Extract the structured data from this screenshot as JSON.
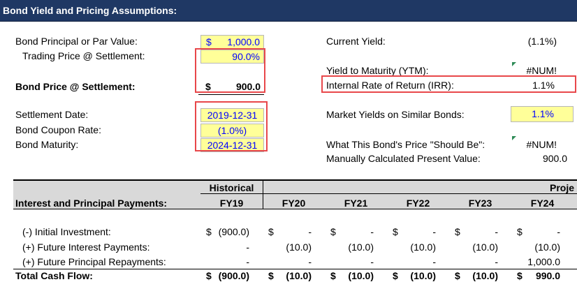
{
  "header": {
    "title": "Bond Yield and Pricing Assumptions:"
  },
  "assumptions": {
    "par_label": "Bond Principal or Par Value:",
    "par_currency": "$",
    "par_value": "1,000.0",
    "trading_price_label": "Trading Price @ Settlement:",
    "trading_price_value": "90.0%",
    "bond_price_label": "Bond Price @ Settlement:",
    "bond_price_currency": "$",
    "bond_price_value": "900.0",
    "settlement_date_label": "Settlement Date:",
    "settlement_date_value": "2019-12-31",
    "coupon_rate_label": "Bond Coupon Rate:",
    "coupon_rate_value": "(1.0%)",
    "maturity_label": "Bond Maturity:",
    "maturity_value": "2024-12-31"
  },
  "yields": {
    "current_yield_label": "Current Yield:",
    "current_yield_value": "(1.1%)",
    "ytm_label": "Yield to Maturity (YTM):",
    "ytm_value": "#NUM!",
    "irr_label": "Internal Rate of Return (IRR):",
    "irr_value": "1.1%",
    "market_yield_label": "Market Yields on Similar Bonds:",
    "market_yield_value": "1.1%",
    "should_be_label": "What This Bond's Price \"Should Be\":",
    "should_be_value": "#NUM!",
    "pv_label": "Manually Calculated Present Value:",
    "pv_value": "900.0"
  },
  "table": {
    "historical_label": "Historical",
    "projected_label": "Proje",
    "section_label": "Interest and Principal Payments:",
    "years": [
      "FY19",
      "FY20",
      "FY21",
      "FY22",
      "FY23",
      "FY24"
    ],
    "rows": [
      {
        "label": "(-) Initial Investment:",
        "cells": [
          {
            "cur": "$",
            "val": "(900.0)"
          },
          {
            "cur": "$",
            "val": "-"
          },
          {
            "cur": "$",
            "val": "-"
          },
          {
            "cur": "$",
            "val": "-"
          },
          {
            "cur": "$",
            "val": "-"
          },
          {
            "cur": "$",
            "val": "-"
          }
        ]
      },
      {
        "label": "(+) Future Interest Payments:",
        "cells": [
          {
            "cur": "",
            "val": "-"
          },
          {
            "cur": "",
            "val": "(10.0)"
          },
          {
            "cur": "",
            "val": "(10.0)"
          },
          {
            "cur": "",
            "val": "(10.0)"
          },
          {
            "cur": "",
            "val": "(10.0)"
          },
          {
            "cur": "",
            "val": "(10.0)"
          }
        ]
      },
      {
        "label": "(+) Future Principal Repayments:",
        "cells": [
          {
            "cur": "",
            "val": "-"
          },
          {
            "cur": "",
            "val": "-"
          },
          {
            "cur": "",
            "val": "-"
          },
          {
            "cur": "",
            "val": "-"
          },
          {
            "cur": "",
            "val": "-"
          },
          {
            "cur": "",
            "val": "1,000.0"
          }
        ]
      }
    ],
    "total": {
      "label": "Total Cash Flow:",
      "cells": [
        {
          "cur": "$",
          "val": "(900.0)"
        },
        {
          "cur": "$",
          "val": "(10.0)"
        },
        {
          "cur": "$",
          "val": "(10.0)"
        },
        {
          "cur": "$",
          "val": "(10.0)"
        },
        {
          "cur": "$",
          "val": "(10.0)"
        },
        {
          "cur": "$",
          "val": "990.0"
        }
      ]
    }
  },
  "colors": {
    "header_bg": "#1f3864",
    "input_bg": "#ffff99",
    "input_text": "#0000ff",
    "highlight_border": "#e8474a",
    "band_bg": "#d9d9d9"
  }
}
